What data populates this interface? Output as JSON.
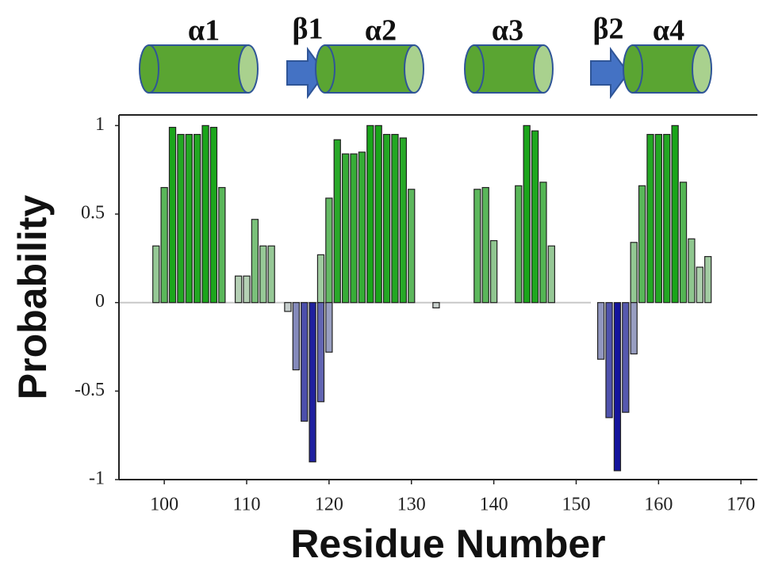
{
  "chart_data": {
    "type": "bar",
    "annotations": [
      "α1",
      "β1",
      "α2",
      "α3",
      "β2",
      "α4"
    ],
    "xlabel": "Residue Number",
    "ylabel": "Probability",
    "x": [
      99,
      100,
      101,
      102,
      103,
      104,
      105,
      106,
      107,
      108,
      109,
      110,
      111,
      112,
      113,
      114,
      115,
      116,
      117,
      118,
      119,
      120,
      121,
      122,
      123,
      124,
      125,
      126,
      127,
      128,
      129,
      130,
      131,
      132,
      133,
      134,
      135,
      136,
      137,
      138,
      139,
      140,
      141,
      142,
      143,
      144,
      145,
      146,
      147,
      148,
      149,
      150,
      151,
      152,
      153,
      154,
      155,
      156,
      157,
      158,
      159,
      160,
      161,
      162,
      163,
      164,
      165,
      166
    ],
    "series": [
      {
        "color": "#1aa51a",
        "values": [
          0.32,
          0.65,
          0.99,
          0.95,
          0.95,
          0.95,
          1.0,
          0.99,
          0.65,
          null,
          0.15,
          0.15,
          0.47,
          0.32,
          0.32,
          null,
          null,
          null,
          null,
          null,
          0.27,
          0.59,
          0.92,
          0.84,
          0.84,
          0.85,
          1.0,
          1.0,
          0.95,
          0.95,
          0.93,
          0.64,
          null,
          null,
          null,
          null,
          null,
          null,
          null,
          0.64,
          0.65,
          0.35,
          null,
          null,
          0.66,
          1.0,
          0.97,
          0.68,
          0.32,
          null,
          null,
          null,
          null,
          null,
          null,
          null,
          null,
          null,
          0.34,
          0.66,
          0.95,
          0.95,
          0.95,
          1.0,
          0.68,
          0.36,
          0.2,
          0.26
        ]
      },
      {
        "color": "#0b0b9a",
        "values": [
          null,
          null,
          null,
          null,
          null,
          null,
          null,
          null,
          null,
          null,
          null,
          null,
          null,
          null,
          null,
          null,
          -0.05,
          -0.38,
          -0.67,
          -0.9,
          -0.56,
          -0.28,
          null,
          null,
          null,
          null,
          null,
          null,
          null,
          null,
          null,
          null,
          null,
          null,
          -0.03,
          null,
          null,
          null,
          null,
          null,
          null,
          null,
          null,
          null,
          null,
          null,
          null,
          null,
          null,
          null,
          null,
          null,
          null,
          null,
          -0.32,
          -0.65,
          -0.95,
          -0.62,
          -0.29,
          null,
          null,
          null,
          null,
          null,
          null,
          null,
          null,
          null
        ]
      }
    ],
    "xlim": [
      94.5,
      172
    ],
    "xticks": [
      100,
      110,
      120,
      130,
      140,
      150,
      160,
      170
    ],
    "ylim": [
      -1,
      1.06
    ],
    "yticks": [
      {
        "value": -1,
        "label": "-1"
      },
      {
        "value": -0.5,
        "label": "-0.5"
      },
      0,
      {
        "value": 0.5,
        "label": "0.5"
      },
      1
    ]
  }
}
